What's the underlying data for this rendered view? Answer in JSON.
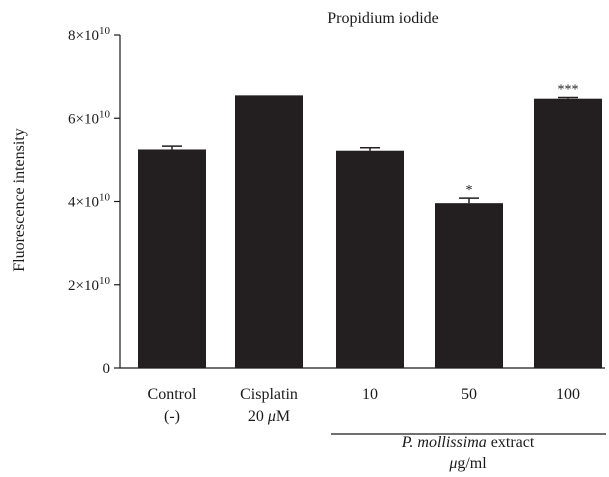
{
  "chart_data": {
    "type": "bar",
    "title": "Propidium iodide",
    "ylabel": "Fluorescence intensity",
    "xlabel": "",
    "ylim": [
      0,
      80000000000.0
    ],
    "yticks": [
      {
        "value": 0,
        "mantissa": "0",
        "exp": ""
      },
      {
        "value": 20000000000.0,
        "mantissa": "2×10",
        "exp": "10"
      },
      {
        "value": 40000000000.0,
        "mantissa": "4×10",
        "exp": "10"
      },
      {
        "value": 60000000000.0,
        "mantissa": "6×10",
        "exp": "10"
      },
      {
        "value": 80000000000.0,
        "mantissa": "8×10",
        "exp": "10"
      }
    ],
    "categories": [
      {
        "line1": "Control",
        "line2": "(-)"
      },
      {
        "line1": "Cisplatin",
        "line2_prefix": "20 ",
        "line2_italic": "μ",
        "line2_suffix": "M"
      },
      {
        "line1": "10",
        "line2": ""
      },
      {
        "line1": "50",
        "line2": ""
      },
      {
        "line1": "100",
        "line2": ""
      }
    ],
    "values": [
      52500000000.0,
      65500000000.0,
      52200000000.0,
      39600000000.0,
      64700000000.0
    ],
    "errors": [
      800000000.0,
      0,
      700000000.0,
      1200000000.0,
      300000000.0
    ],
    "significance": [
      "",
      "",
      "",
      "*",
      "***"
    ],
    "group_label": {
      "species_italic": "P. mollissima",
      "species_rest": " extract",
      "unit_italic": "μ",
      "unit_rest": "g/ml"
    },
    "bar_color": "#231f20"
  }
}
